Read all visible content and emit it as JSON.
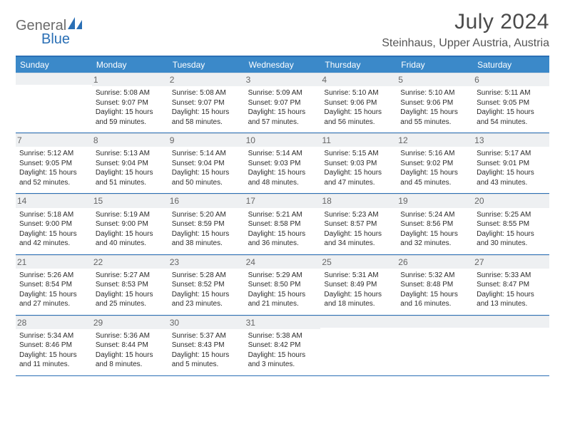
{
  "logo": {
    "word1": "General",
    "word2": "Blue"
  },
  "title": "July 2024",
  "location": "Steinhaus, Upper Austria, Austria",
  "colors": {
    "header_bar": "#3b89c9",
    "rule": "#2a6fb5",
    "daynum_bg": "#eef0f2",
    "text": "#333333"
  },
  "dow": [
    "Sunday",
    "Monday",
    "Tuesday",
    "Wednesday",
    "Thursday",
    "Friday",
    "Saturday"
  ],
  "weeks": [
    [
      null,
      {
        "n": "1",
        "sr": "Sunrise: 5:08 AM",
        "ss": "Sunset: 9:07 PM",
        "dl": "Daylight: 15 hours and 59 minutes."
      },
      {
        "n": "2",
        "sr": "Sunrise: 5:08 AM",
        "ss": "Sunset: 9:07 PM",
        "dl": "Daylight: 15 hours and 58 minutes."
      },
      {
        "n": "3",
        "sr": "Sunrise: 5:09 AM",
        "ss": "Sunset: 9:07 PM",
        "dl": "Daylight: 15 hours and 57 minutes."
      },
      {
        "n": "4",
        "sr": "Sunrise: 5:10 AM",
        "ss": "Sunset: 9:06 PM",
        "dl": "Daylight: 15 hours and 56 minutes."
      },
      {
        "n": "5",
        "sr": "Sunrise: 5:10 AM",
        "ss": "Sunset: 9:06 PM",
        "dl": "Daylight: 15 hours and 55 minutes."
      },
      {
        "n": "6",
        "sr": "Sunrise: 5:11 AM",
        "ss": "Sunset: 9:05 PM",
        "dl": "Daylight: 15 hours and 54 minutes."
      }
    ],
    [
      {
        "n": "7",
        "sr": "Sunrise: 5:12 AM",
        "ss": "Sunset: 9:05 PM",
        "dl": "Daylight: 15 hours and 52 minutes."
      },
      {
        "n": "8",
        "sr": "Sunrise: 5:13 AM",
        "ss": "Sunset: 9:04 PM",
        "dl": "Daylight: 15 hours and 51 minutes."
      },
      {
        "n": "9",
        "sr": "Sunrise: 5:14 AM",
        "ss": "Sunset: 9:04 PM",
        "dl": "Daylight: 15 hours and 50 minutes."
      },
      {
        "n": "10",
        "sr": "Sunrise: 5:14 AM",
        "ss": "Sunset: 9:03 PM",
        "dl": "Daylight: 15 hours and 48 minutes."
      },
      {
        "n": "11",
        "sr": "Sunrise: 5:15 AM",
        "ss": "Sunset: 9:03 PM",
        "dl": "Daylight: 15 hours and 47 minutes."
      },
      {
        "n": "12",
        "sr": "Sunrise: 5:16 AM",
        "ss": "Sunset: 9:02 PM",
        "dl": "Daylight: 15 hours and 45 minutes."
      },
      {
        "n": "13",
        "sr": "Sunrise: 5:17 AM",
        "ss": "Sunset: 9:01 PM",
        "dl": "Daylight: 15 hours and 43 minutes."
      }
    ],
    [
      {
        "n": "14",
        "sr": "Sunrise: 5:18 AM",
        "ss": "Sunset: 9:00 PM",
        "dl": "Daylight: 15 hours and 42 minutes."
      },
      {
        "n": "15",
        "sr": "Sunrise: 5:19 AM",
        "ss": "Sunset: 9:00 PM",
        "dl": "Daylight: 15 hours and 40 minutes."
      },
      {
        "n": "16",
        "sr": "Sunrise: 5:20 AM",
        "ss": "Sunset: 8:59 PM",
        "dl": "Daylight: 15 hours and 38 minutes."
      },
      {
        "n": "17",
        "sr": "Sunrise: 5:21 AM",
        "ss": "Sunset: 8:58 PM",
        "dl": "Daylight: 15 hours and 36 minutes."
      },
      {
        "n": "18",
        "sr": "Sunrise: 5:23 AM",
        "ss": "Sunset: 8:57 PM",
        "dl": "Daylight: 15 hours and 34 minutes."
      },
      {
        "n": "19",
        "sr": "Sunrise: 5:24 AM",
        "ss": "Sunset: 8:56 PM",
        "dl": "Daylight: 15 hours and 32 minutes."
      },
      {
        "n": "20",
        "sr": "Sunrise: 5:25 AM",
        "ss": "Sunset: 8:55 PM",
        "dl": "Daylight: 15 hours and 30 minutes."
      }
    ],
    [
      {
        "n": "21",
        "sr": "Sunrise: 5:26 AM",
        "ss": "Sunset: 8:54 PM",
        "dl": "Daylight: 15 hours and 27 minutes."
      },
      {
        "n": "22",
        "sr": "Sunrise: 5:27 AM",
        "ss": "Sunset: 8:53 PM",
        "dl": "Daylight: 15 hours and 25 minutes."
      },
      {
        "n": "23",
        "sr": "Sunrise: 5:28 AM",
        "ss": "Sunset: 8:52 PM",
        "dl": "Daylight: 15 hours and 23 minutes."
      },
      {
        "n": "24",
        "sr": "Sunrise: 5:29 AM",
        "ss": "Sunset: 8:50 PM",
        "dl": "Daylight: 15 hours and 21 minutes."
      },
      {
        "n": "25",
        "sr": "Sunrise: 5:31 AM",
        "ss": "Sunset: 8:49 PM",
        "dl": "Daylight: 15 hours and 18 minutes."
      },
      {
        "n": "26",
        "sr": "Sunrise: 5:32 AM",
        "ss": "Sunset: 8:48 PM",
        "dl": "Daylight: 15 hours and 16 minutes."
      },
      {
        "n": "27",
        "sr": "Sunrise: 5:33 AM",
        "ss": "Sunset: 8:47 PM",
        "dl": "Daylight: 15 hours and 13 minutes."
      }
    ],
    [
      {
        "n": "28",
        "sr": "Sunrise: 5:34 AM",
        "ss": "Sunset: 8:46 PM",
        "dl": "Daylight: 15 hours and 11 minutes."
      },
      {
        "n": "29",
        "sr": "Sunrise: 5:36 AM",
        "ss": "Sunset: 8:44 PM",
        "dl": "Daylight: 15 hours and 8 minutes."
      },
      {
        "n": "30",
        "sr": "Sunrise: 5:37 AM",
        "ss": "Sunset: 8:43 PM",
        "dl": "Daylight: 15 hours and 5 minutes."
      },
      {
        "n": "31",
        "sr": "Sunrise: 5:38 AM",
        "ss": "Sunset: 8:42 PM",
        "dl": "Daylight: 15 hours and 3 minutes."
      },
      null,
      null,
      null
    ]
  ]
}
